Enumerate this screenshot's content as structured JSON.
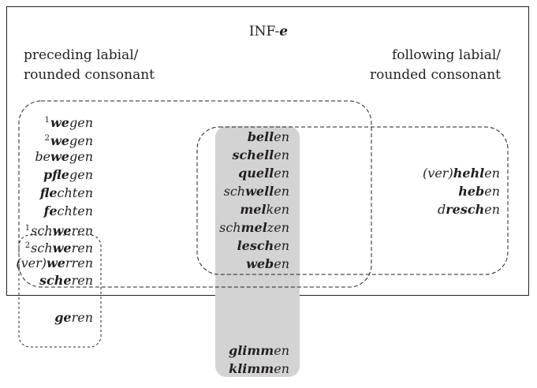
{
  "title": {
    "prefix": "INF-",
    "suffix": "e"
  },
  "left_heading": {
    "line1": "preceding labial/",
    "line2": "rounded consonant"
  },
  "right_heading": {
    "line1": "following labial/",
    "line2": "rounded consonant"
  },
  "left_words": [
    {
      "sup": "1",
      "bold": "we",
      "rest": "gen"
    },
    {
      "sup": "2",
      "bold": "we",
      "rest": "gen"
    },
    {
      "sup": "",
      "pre": "be",
      "bold": "we",
      "rest": "gen"
    },
    {
      "sup": "",
      "bold": "pfle",
      "rest": "gen"
    },
    {
      "sup": "",
      "bold": "fle",
      "rest": "chten"
    },
    {
      "sup": "",
      "bold": "fe",
      "rest": "chten"
    },
    {
      "sup": "1",
      "pre": "sch",
      "bold": "we",
      "rest": "ren"
    },
    {
      "sup": "2",
      "pre": "sch",
      "bold": "we",
      "rest": "ren"
    },
    {
      "sup": "",
      "pre": "(ver)",
      "bold": "we",
      "rest": "rren"
    },
    {
      "sup": "",
      "bold": "sche",
      "rest": "ren"
    },
    {
      "sup": "",
      "bold": "ge",
      "rest": "ren"
    }
  ],
  "middle_words": [
    {
      "pre": "",
      "bold": "bell",
      "rest": "en"
    },
    {
      "pre": "",
      "bold": "schell",
      "rest": "en"
    },
    {
      "pre": "",
      "bold": "quell",
      "rest": "en"
    },
    {
      "pre": "sch",
      "bold": "well",
      "rest": "en"
    },
    {
      "pre": "",
      "bold": "mel",
      "rest": "ken"
    },
    {
      "pre": "sch",
      "bold": "mel",
      "rest": "zen"
    },
    {
      "pre": "",
      "bold": "lesch",
      "rest": "en"
    },
    {
      "pre": "",
      "bold": "web",
      "rest": "en"
    },
    {
      "pre": "",
      "bold": "glimm",
      "rest": "en"
    },
    {
      "pre": "",
      "bold": "klimm",
      "rest": "en"
    }
  ],
  "right_words": [
    {
      "pre": "(ver)",
      "bold": "hehl",
      "rest": "en"
    },
    {
      "pre": "",
      "bold": "heb",
      "rest": "en"
    },
    {
      "pre": "d",
      "bold": "resch",
      "rest": "en"
    }
  ],
  "colors": {
    "shade": "#d3d3d3",
    "line": "#231f20"
  }
}
